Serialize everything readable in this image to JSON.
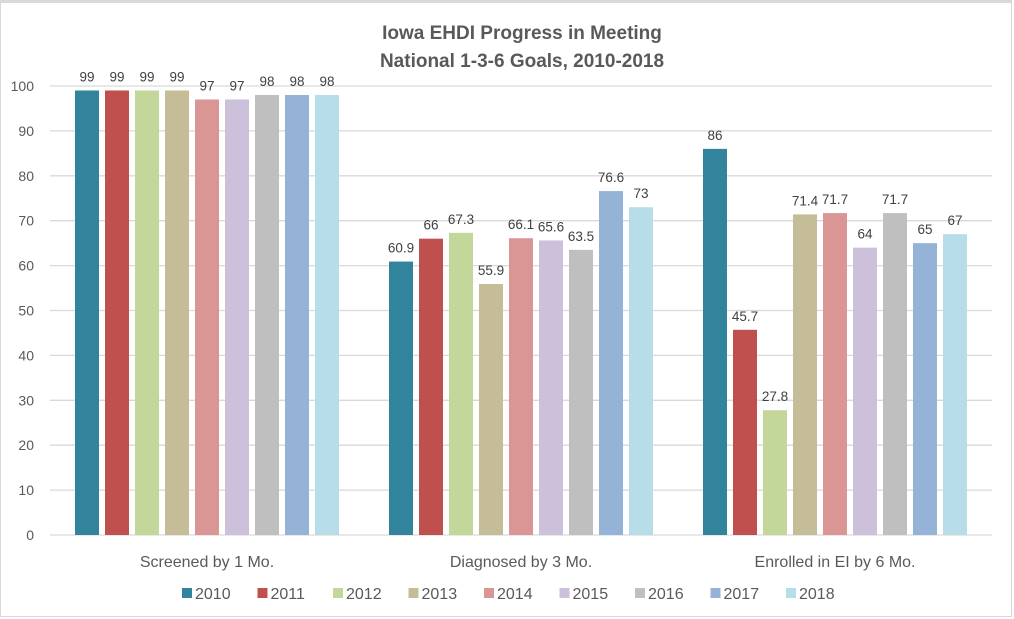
{
  "chart_data": {
    "type": "bar",
    "title": [
      "Iowa EHDI Progress in Meeting",
      "National 1-3-6 Goals, 2010-2018"
    ],
    "xlabel": "",
    "ylabel": "",
    "ylim": [
      0,
      100
    ],
    "yticks": [
      0,
      10,
      20,
      30,
      40,
      50,
      60,
      70,
      80,
      90,
      100
    ],
    "grid": true,
    "legend_position": "bottom",
    "categories": [
      "Screened by 1 Mo.",
      "Diagnosed by 3 Mo.",
      "Enrolled in EI by 6 Mo."
    ],
    "series": [
      {
        "name": "2010",
        "color": "#31849B",
        "values": [
          99,
          60.9,
          86
        ]
      },
      {
        "name": "2011",
        "color": "#C0504D",
        "values": [
          99,
          66,
          45.7
        ]
      },
      {
        "name": "2012",
        "color": "#C4D79B",
        "values": [
          99,
          67.3,
          27.8
        ]
      },
      {
        "name": "2013",
        "color": "#C4BD97",
        "values": [
          99,
          55.9,
          71.4
        ]
      },
      {
        "name": "2014",
        "color": "#DA9694",
        "values": [
          97,
          66.1,
          71.7
        ]
      },
      {
        "name": "2015",
        "color": "#CCC0DA",
        "values": [
          97,
          65.6,
          64
        ]
      },
      {
        "name": "2016",
        "color": "#BFBFBF",
        "values": [
          98,
          63.5,
          71.7
        ]
      },
      {
        "name": "2017",
        "color": "#95B3D7",
        "values": [
          98,
          76.6,
          65
        ]
      },
      {
        "name": "2018",
        "color": "#B7DDE8",
        "values": [
          98,
          73,
          67
        ]
      }
    ]
  }
}
